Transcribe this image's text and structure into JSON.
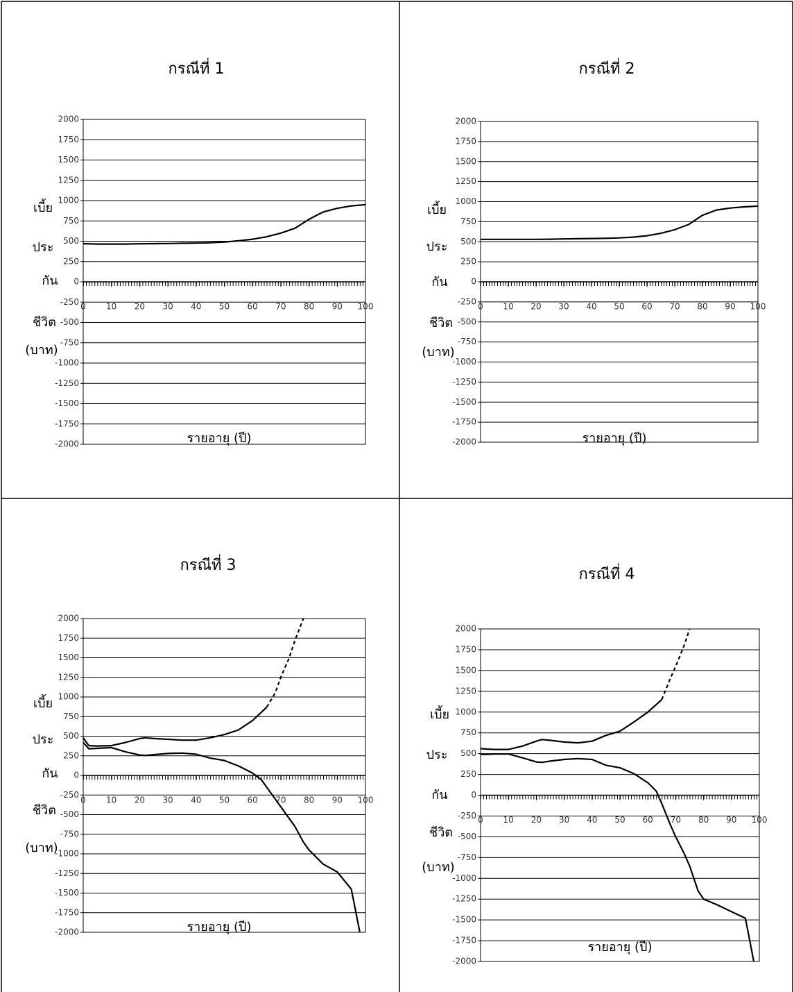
{
  "chart_data": [
    {
      "type": "line",
      "title": "กรณีที่ 1",
      "xlabel": "รายอายุ (ปี)",
      "ylabel": [
        "เบี้ย",
        "ประ",
        "กัน",
        "ชีวิต",
        "(บาท)"
      ],
      "x": [
        0,
        5,
        10,
        15,
        20,
        25,
        30,
        35,
        40,
        45,
        50,
        55,
        60,
        65,
        70,
        75,
        80,
        85,
        90,
        95,
        100
      ],
      "series": [
        {
          "color": "#000000",
          "values": [
            470,
            465,
            465,
            465,
            468,
            470,
            472,
            475,
            478,
            482,
            490,
            505,
            525,
            555,
            600,
            660,
            770,
            860,
            905,
            935,
            950
          ]
        }
      ],
      "xlim": [
        0,
        100
      ],
      "xticks": [
        0,
        10,
        20,
        30,
        40,
        50,
        60,
        70,
        80,
        90,
        100
      ],
      "ylim": [
        -2000,
        2000
      ],
      "yticks": [
        -2000,
        -1750,
        -1500,
        -1250,
        -1000,
        -750,
        -500,
        -250,
        0,
        250,
        500,
        750,
        1000,
        1250,
        1500,
        1750,
        2000
      ],
      "grid": true
    },
    {
      "type": "line",
      "title": "กรณีที่ 2",
      "xlabel": "รายอายุ (ปี)",
      "ylabel": [
        "เบี้ย",
        "ประ",
        "กัน",
        "ชีวิต",
        "(บาท)"
      ],
      "x": [
        0,
        5,
        10,
        15,
        20,
        25,
        30,
        35,
        40,
        45,
        50,
        55,
        60,
        65,
        70,
        75,
        80,
        85,
        90,
        95,
        100
      ],
      "series": [
        {
          "color": "#000000",
          "values": [
            530,
            530,
            530,
            530,
            530,
            532,
            535,
            538,
            540,
            543,
            548,
            558,
            575,
            605,
            650,
            715,
            830,
            895,
            920,
            935,
            945
          ]
        }
      ],
      "xlim": [
        0,
        100
      ],
      "xticks": [
        0,
        10,
        20,
        30,
        40,
        50,
        60,
        70,
        80,
        90,
        100
      ],
      "ylim": [
        -2000,
        2000
      ],
      "yticks": [
        -2000,
        -1750,
        -1500,
        -1250,
        -1000,
        -750,
        -500,
        -250,
        0,
        250,
        500,
        750,
        1000,
        1250,
        1500,
        1750,
        2000
      ],
      "grid": true
    },
    {
      "type": "line",
      "title": "กรณีที่ 3",
      "xlabel": "รายอายุ (ปี)",
      "ylabel": [
        "เบี้ย",
        "ประ",
        "กัน",
        "ชีวิต",
        "(บาท)"
      ],
      "x": [
        0,
        2,
        5,
        10,
        15,
        20,
        22,
        25,
        30,
        35,
        40,
        45,
        50,
        55,
        60,
        63,
        65,
        68,
        70,
        73,
        75,
        78,
        80,
        85,
        90,
        95,
        98,
        100
      ],
      "series": [
        {
          "color": "#000000",
          "values": [
            480,
            380,
            375,
            380,
            420,
            470,
            480,
            470,
            460,
            450,
            450,
            480,
            520,
            580,
            700,
            800,
            870,
            null,
            null,
            null,
            null,
            null,
            null,
            null,
            null,
            null,
            null,
            null
          ]
        },
        {
          "color": "#000000",
          "dashed": true,
          "values": [
            null,
            null,
            null,
            null,
            null,
            null,
            null,
            null,
            null,
            null,
            null,
            null,
            null,
            null,
            null,
            null,
            870,
            1050,
            1250,
            1500,
            1720,
            2000,
            null,
            null,
            null,
            null,
            null,
            null
          ]
        },
        {
          "color": "#000000",
          "values": [
            420,
            340,
            345,
            355,
            300,
            260,
            255,
            265,
            280,
            285,
            270,
            220,
            190,
            120,
            30,
            -50,
            -150,
            -300,
            -400,
            -550,
            -650,
            -850,
            -950,
            -1130,
            -1230,
            -1450,
            -2000,
            null
          ]
        }
      ],
      "xlim": [
        0,
        100
      ],
      "xticks": [
        0,
        10,
        20,
        30,
        40,
        50,
        60,
        70,
        80,
        90,
        100
      ],
      "ylim": [
        -2000,
        2000
      ],
      "yticks": [
        -2000,
        -1750,
        -1500,
        -1250,
        -1000,
        -750,
        -500,
        -250,
        0,
        250,
        500,
        750,
        1000,
        1250,
        1500,
        1750,
        2000
      ],
      "grid": true
    },
    {
      "type": "line",
      "title": "กรณีที่ 4",
      "xlabel": "รายอายุ (ปี)",
      "ylabel": [
        "เบี้ย",
        "ประ",
        "กัน",
        "ชีวิต",
        "(บาท)"
      ],
      "x": [
        0,
        2,
        5,
        10,
        15,
        20,
        22,
        25,
        30,
        35,
        40,
        45,
        50,
        55,
        60,
        63,
        65,
        68,
        70,
        73,
        75,
        78,
        80,
        85,
        90,
        95,
        98,
        100
      ],
      "series": [
        {
          "color": "#000000",
          "values": [
            560,
            555,
            550,
            550,
            590,
            650,
            670,
            660,
            640,
            630,
            650,
            720,
            770,
            880,
            1000,
            1090,
            1150,
            null,
            null,
            null,
            null,
            null,
            null,
            null,
            null,
            null,
            null,
            null
          ]
        },
        {
          "color": "#000000",
          "dashed": true,
          "values": [
            null,
            null,
            null,
            null,
            null,
            null,
            null,
            null,
            null,
            null,
            null,
            null,
            null,
            null,
            null,
            null,
            1150,
            1400,
            1550,
            1800,
            2000,
            null,
            null,
            null,
            null,
            null,
            null,
            null
          ]
        },
        {
          "color": "#000000",
          "values": [
            490,
            490,
            495,
            495,
            450,
            400,
            395,
            410,
            430,
            440,
            430,
            360,
            330,
            260,
            150,
            50,
            -100,
            -350,
            -500,
            -700,
            -850,
            -1150,
            -1250,
            -1320,
            -1400,
            -1480,
            -2000,
            null
          ]
        }
      ],
      "xlim": [
        0,
        100
      ],
      "xticks": [
        0,
        10,
        20,
        30,
        40,
        50,
        60,
        70,
        80,
        90,
        100
      ],
      "ylim": [
        -2000,
        2000
      ],
      "yticks": [
        -2000,
        -1750,
        -1500,
        -1250,
        -1000,
        -750,
        -500,
        -250,
        0,
        250,
        500,
        750,
        1000,
        1250,
        1500,
        1750,
        2000
      ],
      "grid": true
    }
  ]
}
